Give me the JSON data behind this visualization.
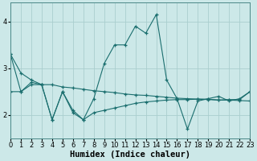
{
  "xlabel": "Humidex (Indice chaleur)",
  "background_color": "#cce8e8",
  "grid_color": "#aacece",
  "line_color": "#1a6e6e",
  "series": [
    [
      3.3,
      2.5,
      2.7,
      2.65,
      1.9,
      2.5,
      2.05,
      1.9,
      2.35,
      3.1,
      3.5,
      3.5,
      3.9,
      3.75,
      4.15,
      2.75,
      2.35,
      1.7,
      2.3,
      2.35,
      2.4,
      2.3,
      2.35,
      2.5
    ],
    [
      3.3,
      2.9,
      2.75,
      2.65,
      2.65,
      2.6,
      2.58,
      2.55,
      2.52,
      2.5,
      2.48,
      2.45,
      2.43,
      2.42,
      2.4,
      2.38,
      2.36,
      2.35,
      2.34,
      2.33,
      2.32,
      2.32,
      2.31,
      2.3
    ],
    [
      2.5,
      2.5,
      2.65,
      2.65,
      1.9,
      2.5,
      2.1,
      1.9,
      2.05,
      2.1,
      2.15,
      2.2,
      2.25,
      2.28,
      2.3,
      2.32,
      2.33,
      2.33,
      2.34,
      2.34,
      2.32,
      2.33,
      2.33,
      2.5
    ]
  ],
  "x_values": [
    0,
    1,
    2,
    3,
    4,
    5,
    6,
    7,
    8,
    9,
    10,
    11,
    12,
    13,
    14,
    15,
    16,
    17,
    18,
    19,
    20,
    21,
    22,
    23
  ],
  "ylim": [
    1.5,
    4.4
  ],
  "yticks": [
    2,
    3,
    4
  ],
  "xlim": [
    0,
    23
  ],
  "xticks": [
    0,
    1,
    2,
    3,
    4,
    5,
    6,
    7,
    8,
    9,
    10,
    11,
    12,
    13,
    14,
    15,
    16,
    17,
    18,
    19,
    20,
    21,
    22,
    23
  ],
  "tick_fontsize": 6,
  "xlabel_fontsize": 7.5,
  "figwidth": 3.2,
  "figheight": 2.0,
  "dpi": 100
}
